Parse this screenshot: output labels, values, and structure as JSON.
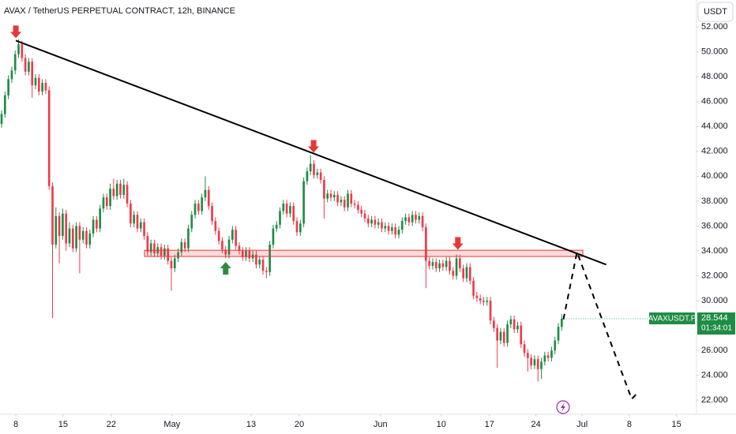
{
  "header": {
    "symbol": "AVAX / TetherUS PERPETUAL CONTRACT, 12h, BINANCE",
    "currency": "USDT"
  },
  "chart_data": {
    "type": "candlestick",
    "series": [
      {
        "name": "AVAXUSDT.P",
        "up_color": "#1e8c45",
        "down_color": "#f0394b",
        "countdown": "01:34:01",
        "open": [
          44.2,
          45.0,
          46.5,
          47.8,
          48.5,
          49.8,
          50.6,
          49.5,
          48.4,
          49.2,
          47.3,
          47.9,
          46.8,
          47.5,
          46.9,
          39.2,
          34.5,
          36.8,
          35.2,
          37.0,
          34.6,
          35.8,
          34.2,
          36.0,
          34.9,
          35.6,
          34.5,
          35.4,
          36.5,
          35.8,
          37.4,
          38.3,
          37.6,
          39.0,
          38.4,
          39.4,
          38.5,
          39.3,
          37.8,
          36.2,
          36.9,
          35.8,
          36.3,
          35.2,
          33.9,
          34.6,
          33.8,
          34.3,
          33.6,
          34.2,
          33.2,
          32.6,
          33.4,
          33.9,
          34.7,
          34.2,
          35.8,
          36.9,
          37.8,
          37.2,
          38.3,
          38.9,
          37.6,
          36.4,
          35.6,
          34.8,
          34.1,
          33.7,
          34.9,
          35.7,
          34.4,
          34.0,
          33.5,
          34.0,
          33.4,
          33.7,
          32.9,
          33.3,
          32.4,
          32.3,
          34.5,
          35.8,
          36.1,
          37.2,
          37.8,
          37.0,
          37.6,
          36.4,
          35.5,
          36.2,
          39.6,
          40.4,
          41.0,
          40.1,
          40.3,
          39.7,
          38.2,
          38.6,
          38.3,
          38.5,
          37.9,
          38.1,
          37.5,
          38.6,
          37.8,
          37.7,
          37.3,
          37.0,
          36.6,
          36.2,
          36.5,
          36.1,
          36.3,
          35.8,
          36.0,
          35.6,
          35.9,
          35.3,
          35.7,
          36.4,
          36.7,
          36.3,
          36.9,
          36.5,
          36.8,
          35.9,
          33.2,
          32.8,
          33.1,
          32.6,
          33.0,
          32.7,
          33.2,
          32.4,
          32.0,
          33.4,
          32.6,
          31.8,
          32.7,
          31.6,
          30.4,
          30.2,
          30.0,
          29.9,
          30.0,
          28.4,
          27.8,
          26.8,
          27.5,
          26.6,
          28.1,
          28.5,
          27.7,
          28.0,
          26.5,
          25.8,
          25.4,
          24.8,
          25.3,
          24.5,
          25.1,
          25.6,
          25.4,
          26.0,
          26.8,
          27.9
        ],
        "high": [
          45.3,
          46.8,
          48.1,
          48.8,
          50.1,
          51.0,
          50.9,
          49.8,
          49.5,
          49.5,
          48.2,
          48.2,
          47.8,
          47.8,
          47.2,
          39.5,
          37.5,
          37.1,
          37.4,
          37.3,
          36.3,
          36.1,
          36.3,
          36.3,
          35.9,
          35.9,
          35.7,
          36.8,
          36.8,
          37.7,
          38.6,
          38.6,
          39.4,
          39.8,
          39.7,
          39.7,
          39.8,
          39.6,
          38.1,
          37.2,
          37.2,
          36.6,
          36.6,
          35.5,
          34.9,
          34.9,
          34.6,
          34.6,
          34.5,
          34.5,
          33.5,
          33.7,
          34.2,
          35.0,
          35.0,
          36.1,
          37.2,
          38.1,
          38.1,
          38.6,
          40.0,
          39.2,
          37.9,
          36.7,
          35.9,
          35.1,
          34.4,
          35.2,
          36.0,
          36.0,
          34.7,
          34.3,
          34.3,
          34.3,
          34.0,
          34.0,
          33.6,
          33.6,
          32.7,
          34.8,
          36.1,
          36.4,
          37.5,
          38.1,
          38.1,
          37.9,
          37.9,
          36.7,
          36.5,
          39.9,
          40.7,
          41.7,
          41.3,
          40.6,
          40.6,
          40.0,
          38.9,
          38.9,
          38.8,
          38.8,
          38.4,
          38.4,
          38.9,
          38.9,
          38.1,
          38.0,
          37.6,
          37.3,
          36.9,
          36.8,
          36.8,
          36.6,
          36.6,
          36.3,
          36.3,
          36.2,
          36.2,
          36.0,
          36.7,
          37.0,
          37.0,
          37.2,
          37.2,
          37.1,
          37.1,
          36.2,
          33.5,
          33.4,
          33.4,
          33.3,
          33.3,
          33.5,
          33.5,
          32.7,
          33.7,
          33.7,
          32.9,
          33.0,
          33.0,
          31.9,
          30.7,
          30.5,
          30.3,
          30.3,
          30.3,
          28.7,
          28.1,
          27.8,
          27.8,
          28.4,
          28.8,
          28.8,
          28.3,
          28.3,
          26.8,
          26.1,
          25.7,
          25.6,
          25.6,
          25.4,
          25.9,
          25.9,
          26.3,
          27.1,
          28.2,
          28.9
        ],
        "low": [
          43.9,
          44.7,
          46.2,
          47.5,
          48.2,
          49.5,
          49.2,
          48.1,
          48.1,
          46.3,
          47.0,
          46.5,
          46.5,
          46.6,
          38.9,
          28.6,
          34.2,
          33.0,
          34.9,
          34.0,
          34.3,
          33.9,
          33.9,
          32.2,
          34.6,
          34.2,
          34.2,
          35.1,
          35.5,
          35.5,
          37.1,
          37.3,
          37.3,
          38.1,
          38.1,
          38.2,
          38.2,
          37.5,
          35.9,
          35.9,
          35.5,
          35.5,
          34.9,
          33.6,
          33.6,
          33.5,
          33.5,
          33.3,
          33.3,
          32.9,
          30.8,
          32.3,
          33.1,
          33.6,
          33.9,
          33.9,
          35.5,
          36.6,
          36.9,
          36.9,
          38.0,
          37.3,
          36.1,
          35.3,
          34.5,
          33.8,
          33.4,
          33.4,
          34.6,
          34.1,
          33.7,
          33.2,
          33.2,
          33.1,
          33.1,
          32.6,
          32.6,
          32.1,
          31.8,
          32.0,
          34.2,
          35.5,
          35.8,
          36.9,
          36.7,
          36.7,
          36.1,
          35.2,
          35.2,
          35.9,
          39.3,
          40.1,
          39.8,
          39.8,
          39.4,
          36.6,
          37.9,
          38.0,
          38.0,
          37.6,
          37.6,
          37.2,
          37.2,
          37.5,
          37.4,
          37.0,
          36.7,
          36.3,
          35.9,
          35.9,
          35.8,
          35.8,
          35.5,
          35.5,
          35.3,
          35.3,
          35.0,
          35.0,
          35.4,
          36.1,
          36.0,
          36.0,
          36.2,
          36.2,
          35.6,
          31.0,
          32.5,
          32.5,
          32.3,
          32.3,
          32.4,
          32.4,
          32.1,
          31.7,
          31.7,
          32.3,
          31.5,
          31.5,
          31.3,
          30.1,
          29.9,
          29.7,
          29.6,
          29.6,
          28.1,
          27.5,
          24.6,
          26.5,
          26.3,
          26.3,
          27.8,
          27.4,
          27.4,
          26.2,
          25.5,
          24.3,
          24.5,
          24.5,
          23.5,
          23.7,
          24.8,
          25.1,
          25.1,
          25.7,
          26.5,
          27.6
        ],
        "close": [
          45.0,
          46.5,
          47.8,
          48.5,
          49.8,
          50.6,
          49.5,
          48.4,
          49.2,
          47.3,
          47.9,
          46.8,
          47.5,
          46.9,
          39.2,
          34.5,
          36.8,
          35.2,
          37.0,
          34.6,
          35.8,
          34.2,
          36.0,
          34.9,
          35.6,
          34.5,
          35.4,
          36.5,
          35.8,
          37.4,
          38.3,
          37.6,
          39.0,
          38.4,
          39.4,
          38.5,
          39.3,
          37.8,
          36.2,
          36.9,
          35.8,
          36.3,
          35.2,
          33.9,
          34.6,
          33.8,
          34.3,
          33.6,
          34.2,
          33.2,
          32.6,
          33.4,
          33.9,
          34.7,
          34.2,
          35.8,
          36.9,
          37.8,
          37.2,
          38.3,
          38.9,
          37.6,
          36.4,
          35.6,
          34.8,
          34.1,
          33.7,
          34.9,
          35.7,
          34.4,
          34.0,
          33.5,
          34.0,
          33.4,
          33.7,
          32.9,
          33.3,
          32.4,
          32.3,
          34.5,
          35.8,
          36.1,
          37.2,
          37.8,
          37.0,
          37.6,
          36.4,
          35.5,
          36.2,
          39.6,
          40.4,
          41.0,
          40.1,
          40.3,
          39.7,
          38.2,
          38.6,
          38.3,
          38.5,
          37.9,
          38.1,
          37.5,
          38.6,
          37.8,
          37.7,
          37.3,
          37.0,
          36.6,
          36.2,
          36.5,
          36.1,
          36.3,
          35.8,
          36.0,
          35.6,
          35.9,
          35.3,
          35.7,
          36.4,
          36.7,
          36.3,
          36.9,
          36.5,
          36.8,
          35.9,
          33.2,
          32.8,
          33.1,
          32.6,
          33.0,
          32.7,
          33.2,
          32.4,
          32.0,
          33.4,
          32.6,
          31.8,
          32.7,
          31.6,
          30.4,
          30.2,
          30.0,
          29.9,
          30.0,
          28.4,
          27.8,
          26.8,
          27.5,
          26.6,
          28.1,
          28.5,
          27.7,
          28.0,
          26.5,
          25.8,
          25.4,
          24.8,
          25.3,
          24.5,
          25.1,
          25.6,
          25.4,
          26.0,
          26.8,
          27.9,
          28.544
        ]
      }
    ],
    "xlim": [
      -0.47,
      204.7
    ],
    "xticks": [
      {
        "value": 4.2,
        "label": "8"
      },
      {
        "value": 18.1,
        "label": "15"
      },
      {
        "value": 32.3,
        "label": "22"
      },
      {
        "value": 50.2,
        "label": "May"
      },
      {
        "value": 73.5,
        "label": "13"
      },
      {
        "value": 87.7,
        "label": "20"
      },
      {
        "value": 111.6,
        "label": "Jun"
      },
      {
        "value": 129.5,
        "label": "10"
      },
      {
        "value": 143.7,
        "label": "17"
      },
      {
        "value": 157.4,
        "label": "24"
      },
      {
        "value": 171,
        "label": "Jul"
      },
      {
        "value": 184.9,
        "label": "8"
      },
      {
        "value": 198.8,
        "label": "15"
      }
    ],
    "ylim": [
      20.87,
      54.16
    ],
    "yticks": [
      {
        "value": 22,
        "label": "22.000"
      },
      {
        "value": 24,
        "label": "24.000"
      },
      {
        "value": 26,
        "label": "26.000"
      },
      {
        "value": 28,
        "label": "28.000"
      },
      {
        "value": 30,
        "label": "30.000"
      },
      {
        "value": 32,
        "label": "32.000"
      },
      {
        "value": 34,
        "label": "34.000"
      },
      {
        "value": 36,
        "label": "36.000"
      },
      {
        "value": 38,
        "label": "38.000"
      },
      {
        "value": 40,
        "label": "40.000"
      },
      {
        "value": 42,
        "label": "42.000"
      },
      {
        "value": 44,
        "label": "44.000"
      },
      {
        "value": 46,
        "label": "46.000"
      },
      {
        "value": 48,
        "label": "48.000"
      },
      {
        "value": 50,
        "label": "50.000"
      },
      {
        "value": 52,
        "label": "52.000"
      }
    ],
    "grid": false,
    "trendline": {
      "x": [
        4.2,
        178.1
      ],
      "y": [
        50.9,
        32.9
      ],
      "color": "#000000"
    },
    "projection": {
      "x": [
        165.5,
        169.5,
        185.6,
        187.4
      ],
      "y": [
        28.5,
        33.9,
        22.1,
        22.6
      ],
      "color": "#000000"
    },
    "zone": {
      "x": [
        42.1,
        171.2
      ],
      "y": [
        33.55,
        34.05
      ],
      "color": "#e53935"
    },
    "markers": [
      {
        "x": 4.2,
        "y": 51.6,
        "direction": "down",
        "color": "#e53935"
      },
      {
        "x": 91.9,
        "y": 42.4,
        "direction": "down",
        "color": "#e53935"
      },
      {
        "x": 134.4,
        "y": 34.6,
        "direction": "down",
        "color": "#e53935"
      },
      {
        "x": 66,
        "y": 32.6,
        "direction": "up",
        "color": "#2e8b3e"
      }
    ]
  }
}
